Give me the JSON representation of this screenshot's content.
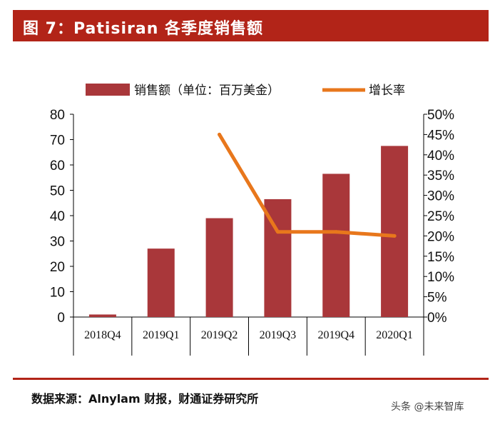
{
  "header": {
    "title": "图 7：Patisiran 各季度销售额"
  },
  "footer": {
    "source": "数据来源：Alnylam 财报，财通证券研究所",
    "watermark": "头条 @未来智库"
  },
  "colors": {
    "bar": "#a9373a",
    "line": "#e8771c",
    "title_bg": "#b22418",
    "axis": "#000000"
  },
  "chart_data": {
    "type": "bar",
    "title": "",
    "xlabel": "",
    "ylabel": "",
    "categories": [
      "2018Q4",
      "2019Q1",
      "2019Q2",
      "2019Q3",
      "2019Q4",
      "2020Q1"
    ],
    "series": [
      {
        "name": "销售额（单位：百万美金）",
        "type": "bar",
        "axis": "left",
        "values": [
          1,
          27,
          39,
          46.5,
          56.5,
          67.5
        ]
      },
      {
        "name": "增长率",
        "type": "line",
        "axis": "right",
        "values": [
          null,
          null,
          0.45,
          0.21,
          0.21,
          0.2
        ]
      }
    ],
    "ylim": [
      0,
      80
    ],
    "yticks": [
      "0",
      "10",
      "20",
      "30",
      "40",
      "50",
      "60",
      "70",
      "80"
    ],
    "y2lim": [
      0,
      0.5
    ],
    "y2ticks": [
      "0%",
      "5%",
      "10%",
      "15%",
      "20%",
      "25%",
      "30%",
      "35%",
      "40%",
      "45%",
      "50%"
    ],
    "legend_position": "top-center",
    "grid": false
  }
}
